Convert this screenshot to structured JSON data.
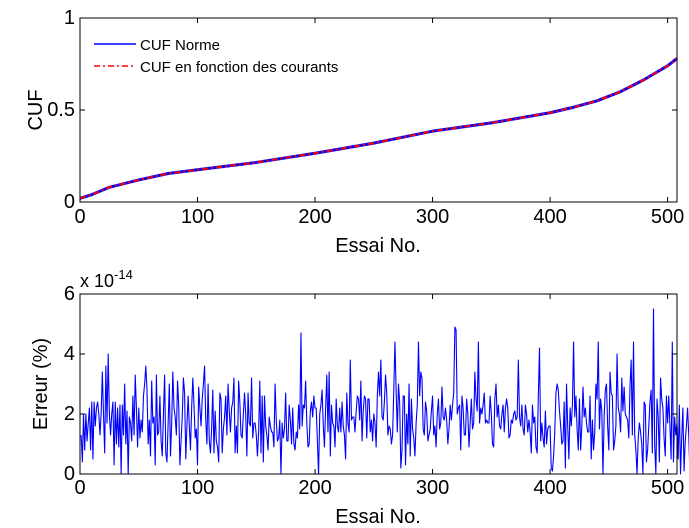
{
  "chart_data": [
    {
      "type": "line",
      "xlabel": "Essai No.",
      "ylabel": "CUF",
      "xlim": [
        0,
        508
      ],
      "ylim": [
        0,
        1
      ],
      "xticks": [
        "0",
        "100",
        "200",
        "300",
        "400",
        "500"
      ],
      "yticks": [
        "0",
        "0.5",
        "1"
      ],
      "legend": {
        "placement": "top-left",
        "entries": [
          "CUF Norme",
          "CUF en fonction des courants"
        ]
      },
      "series": [
        {
          "name": "CUF Norme",
          "color": "#0000ff",
          "x": [
            0,
            10,
            25,
            50,
            75,
            100,
            150,
            200,
            250,
            300,
            350,
            400,
            420,
            440,
            460,
            480,
            500,
            508
          ],
          "y": [
            0.02,
            0.04,
            0.08,
            0.12,
            0.155,
            0.175,
            0.215,
            0.265,
            0.32,
            0.385,
            0.43,
            0.485,
            0.515,
            0.55,
            0.6,
            0.665,
            0.74,
            0.78
          ]
        },
        {
          "name": "CUF en fonction des courants",
          "color": "#ff0000",
          "x": [
            0,
            10,
            25,
            50,
            75,
            100,
            150,
            200,
            250,
            300,
            350,
            400,
            420,
            440,
            460,
            480,
            500,
            508
          ],
          "y": [
            0.02,
            0.04,
            0.08,
            0.12,
            0.155,
            0.175,
            0.215,
            0.265,
            0.32,
            0.385,
            0.43,
            0.485,
            0.515,
            0.55,
            0.6,
            0.665,
            0.74,
            0.78
          ]
        }
      ]
    },
    {
      "type": "line",
      "xlabel": "Essai No.",
      "ylabel": "Erreur (%)",
      "multiplier": "x 10",
      "multiplier_exp": "-14",
      "xlim": [
        0,
        508
      ],
      "ylim": [
        0,
        6
      ],
      "xticks": [
        "0",
        "100",
        "200",
        "300",
        "400",
        "500"
      ],
      "yticks": [
        "0",
        "2",
        "4",
        "6"
      ],
      "series": [
        {
          "color": "#0000ff",
          "x_start": 1,
          "x_step": 1,
          "y": [
            1.3,
            0.4,
            2.0,
            0.8,
            2.0,
            1.1,
            1.7,
            2.2,
            0.8,
            2.4,
            0.5,
            2.4,
            1.6,
            2.2,
            2.4,
            2.0,
            1.3,
            2.0,
            3.4,
            2.0,
            0.7,
            3.6,
            1.7,
            4.0,
            2.0,
            1.3,
            2.0,
            2.4,
            0.3,
            2.4,
            1.0,
            2.2,
            0.9,
            2.3,
            0.0,
            2.3,
            1.3,
            3.0,
            1.0,
            2.1,
            0.0,
            1.9,
            1.7,
            1.1,
            2.6,
            1.3,
            3.3,
            2.2,
            0.9,
            2.2,
            1.2,
            1.8,
            1.4,
            2.6,
            3.0,
            3.6,
            2.8,
            1.0,
            1.8,
            0.6,
            3.1,
            1.7,
            1.9,
            0.3,
            3.3,
            1.3,
            1.4,
            2.6,
            1.1,
            0.6,
            2.0,
            3.3,
            0.7,
            0.4,
            1.7,
            3.0,
            0.6,
            1.7,
            3.4,
            2.2,
            1.9,
            1.3,
            3.1,
            2.3,
            0.3,
            1.1,
            1.9,
            3.2,
            2.7,
            0.5,
            1.6,
            2.6,
            1.6,
            0.8,
            2.2,
            3.2,
            2.3,
            1.2,
            1.5,
            0.3,
            2.9,
            2.2,
            1.6,
            2.5,
            3.0,
            3.6,
            1.8,
            1.0,
            3.0,
            1.1,
            0.7,
            1.5,
            2.8,
            0.7,
            2.1,
            1.1,
            0.9,
            0.4,
            2.7,
            2.5,
            0.7,
            1.5,
            1.9,
            2.6,
            1.3,
            3.0,
            2.1,
            1.4,
            2.2,
            2.4,
            3.2,
            0.7,
            1.6,
            0.7,
            3.1,
            2.4,
            1.3,
            1.2,
            2.0,
            2.7,
            2.0,
            0.6,
            2.7,
            1.7,
            1.6,
            3.2,
            1.2,
            1.7,
            1.7,
            1.3,
            0.6,
            1.4,
            3.1,
            0.7,
            2.6,
            0.4,
            2.6,
            1.6,
            1.3,
            0.8,
            1.9,
            1.6,
            1.4,
            1.4,
            0.9,
            3.0,
            1.8,
            1.1,
            1.2,
            1.8,
            0.0,
            1.7,
            1.2,
            1.5,
            2.7,
            1.1,
            1.1,
            2.3,
            1.8,
            1.0,
            2.2,
            1.0,
            0.8,
            1.4,
            1.2,
            2.3,
            1.5,
            4.7,
            1.6,
            2.3,
            2.2,
            3.1,
            1.7,
            0.9,
            1.0,
            2.1,
            2.4,
            1.9,
            2.6,
            2.2,
            2.2,
            1.1,
            0.0,
            2.0,
            2.3,
            2.8,
            1.6,
            0.9,
            2.2,
            3.3,
            1.4,
            3.4,
            0.6,
            2.3,
            1.7,
            1.6,
            0.9,
            2.5,
            1.6,
            1.4,
            2.2,
            1.4,
            2.4,
            1.6,
            1.3,
            0.5,
            2.7,
            1.7,
            1.4,
            3.8,
            1.8,
            1.9,
            1.9,
            1.4,
            2.1,
            2.6,
            2.5,
            1.8,
            3.1,
            1.1,
            2.1,
            2.6,
            2.5,
            1.2,
            2.5,
            2.5,
            1.4,
            1.8,
            1.1,
            2.0,
            1.7,
            0.9,
            2.6,
            3.4,
            2.6,
            3.8,
            1.9,
            1.8,
            2.4,
            3.3,
            2.7,
            1.3,
            1.6,
            1.5,
            1.0,
            1.3,
            2.8,
            4.4,
            2.8,
            1.4,
            3.0,
            2.4,
            0.2,
            0.8,
            2.6,
            2.6,
            0.3,
            2.0,
            1.0,
            3.0,
            0.6,
            2.5,
            1.5,
            1.2,
            0.6,
            1.7,
            2.3,
            4.4,
            2.6,
            3.4,
            3.2,
            1.5,
            1.3,
            2.4,
            2.1,
            1.1,
            1.3,
            1.5,
            2.1,
            2.6,
            1.3,
            1.6,
            0.9,
            2.0,
            2.5,
            1.5,
            1.7,
            2.9,
            1.9,
            1.8,
            2.2,
            1.8,
            1.0,
            1.5,
            2.3,
            1.8,
            2.3,
            2.7,
            4.9,
            4.8,
            2.0,
            2.2,
            2.3,
            0.8,
            2.6,
            2.2,
            1.3,
            1.3,
            2.5,
            2.0,
            0.9,
            1.7,
            2.5,
            1.5,
            1.7,
            3.4,
            2.5,
            2.1,
            4.4,
            1.7,
            2.2,
            2.0,
            2.3,
            2.7,
            1.7,
            1.8,
            1.7,
            1.7,
            2.6,
            2.0,
            1.0,
            0.9,
            2.5,
            3.0,
            1.9,
            2.3,
            1.6,
            1.5,
            2.0,
            2.3,
            1.4,
            2.2,
            2.5,
            2.2,
            1.2,
            1.3,
            1.8,
            1.7,
            2.0,
            2.1,
            1.8,
            1.9,
            3.8,
            1.9,
            1.6,
            2.3,
            1.5,
            1.3,
            2.3,
            2.0,
            1.4,
            1.8,
            1.4,
            0.7,
            2.3,
            1.7,
            1.9,
            0.9,
            0.7,
            2.6,
            4.2,
            1.1,
            1.7,
            1.2,
            0.9,
            2.1,
            1.0,
            1.5,
            1.6,
            1.6,
            0.2,
            0.1,
            0.6,
            1.4,
            2.7,
            3.0,
            2.8,
            2.1,
            1.6,
            1.0,
            1.1,
            2.4,
            0.2,
            3.0,
            1.6,
            0.5,
            2.2,
            1.6,
            2.3,
            4.4,
            1.9,
            2.6,
            1.5,
            0.8,
            2.5,
            0.8,
            1.6,
            2.9,
            1.9,
            2.2,
            1.7,
            1.4,
            1.4,
            2.6,
            0.5,
            1.8,
            0.8,
            1.4,
            3.0,
            2.5,
            4.4,
            1.5,
            2.5,
            2.1,
            0.0,
            1.9,
            2.8,
            3.0,
            1.6,
            0.8,
            3.4,
            2.7,
            2.6,
            0.8,
            1.1,
            1.6,
            4.0,
            2.2,
            2.0,
            1.4,
            3.2,
            2.1,
            2.9,
            2.0,
            1.9,
            1.8,
            1.2,
            2.9,
            3.8,
            1.3,
            4.4,
            1.3,
            0.8,
            0.0,
            1.2,
            1.7,
            1.4,
            1.0,
            0.0,
            2.4,
            2.3,
            0.4,
            0.8,
            1.6,
            2.4,
            2.8,
            0.7,
            5.5,
            1.0,
            0.0,
            2.5,
            1.9,
            0.4,
            3.2,
            2.5,
            2.2,
            1.2,
            0.6,
            2.6,
            1.7,
            2.6,
            1.6,
            0.5,
            4.4,
            0.4,
            1.9,
            1.3,
            1.7,
            0.5,
            2.3,
            0.0,
            1.2,
            2.2,
            0.1,
            1.1,
            1.6,
            2.2,
            1.3,
            0.0,
            1.4,
            2.2,
            0.2
          ]
        }
      ]
    }
  ]
}
